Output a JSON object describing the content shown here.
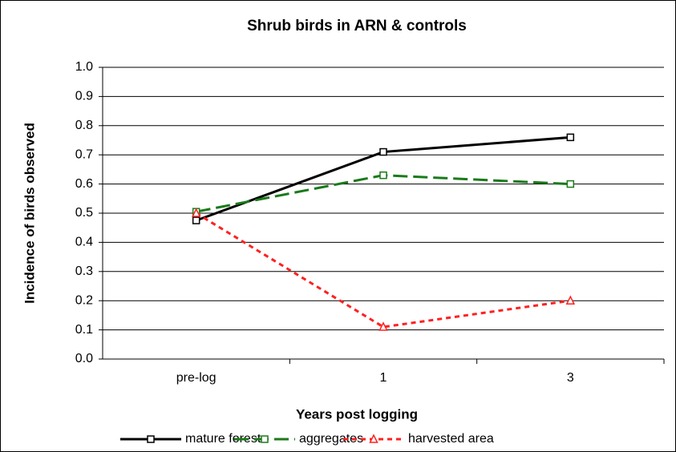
{
  "chart_data": {
    "type": "line",
    "title": "Shrub birds in ARN & controls",
    "xlabel": "Years post logging",
    "ylabel": "Incidence of birds observed",
    "categories": [
      "pre-log",
      "1",
      "3"
    ],
    "series": [
      {
        "name": "mature forest",
        "color": "#000000",
        "marker": "square",
        "dash": "solid",
        "values": [
          0.475,
          0.71,
          0.76
        ]
      },
      {
        "name": "aggregates",
        "color": "#1a7a1a",
        "marker": "square",
        "dash": "dashed",
        "values": [
          0.505,
          0.63,
          0.6
        ]
      },
      {
        "name": "harvested area",
        "color": "#ff2020",
        "marker": "triangle",
        "dash": "dotted",
        "values": [
          0.5,
          0.11,
          0.2
        ]
      }
    ],
    "ylim": [
      0,
      1
    ],
    "yticks": [
      {
        "value": 0,
        "label": "0.0"
      },
      0.1,
      0.2,
      0.3,
      0.4,
      0.5,
      0.6,
      0.7,
      0.8,
      0.9,
      {
        "value": 1,
        "label": "1.0"
      }
    ],
    "grid": true,
    "legend": "bottom"
  }
}
